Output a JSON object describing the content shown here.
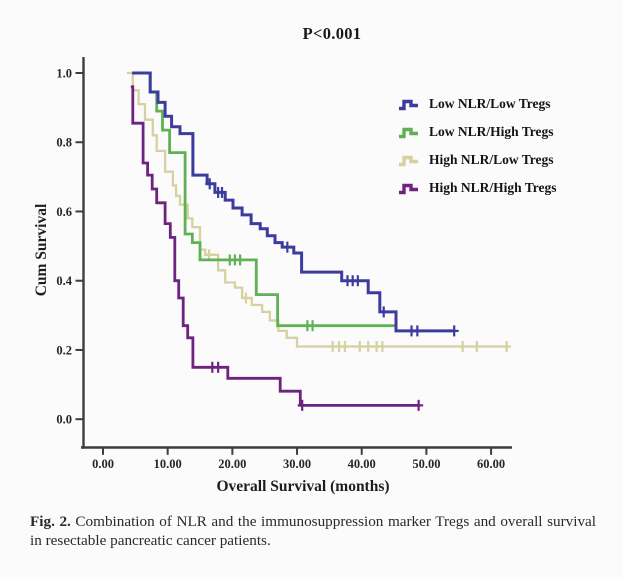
{
  "figure": {
    "title": "P<0.001",
    "caption_prefix": "Fig. 2.",
    "caption_text": "Combination of NLR and the immunosuppression marker Tregs and overall survival in resectable pancreatic cancer patients."
  },
  "chart_data": {
    "type": "line",
    "subtype": "kaplan-meier-step",
    "title": "P<0.001",
    "xlabel": "Overall Survival (months)",
    "ylabel": "Cum Survival",
    "xlim": [
      0,
      63
    ],
    "ylim": [
      0.0,
      1.0
    ],
    "xticks": [
      0,
      10,
      20,
      30,
      40,
      50,
      60
    ],
    "xtick_labels": [
      "0.00",
      "10.00",
      "20.00",
      "30.00",
      "40.00",
      "50.00",
      "60.00"
    ],
    "yticks": [
      0.0,
      0.2,
      0.4,
      0.6,
      0.8,
      1.0
    ],
    "ytick_labels": [
      "0.0",
      "0.2",
      "0.4",
      "0.6",
      "0.8",
      "1.0"
    ],
    "grid": false,
    "legend_position": "upper right",
    "axis_color": "#3d3d3d",
    "tick_label_color": "#262626",
    "series": [
      {
        "name": "Low NLR/Low Tregs",
        "color": "#3c3c9e",
        "line_width": 3,
        "steps": [
          [
            4.5,
            1.0
          ],
          [
            7.3,
            0.945
          ],
          [
            8.5,
            0.915
          ],
          [
            9.6,
            0.875
          ],
          [
            10.6,
            0.845
          ],
          [
            11.9,
            0.825
          ],
          [
            13.9,
            0.705
          ],
          [
            16.1,
            0.68
          ],
          [
            17.3,
            0.655
          ],
          [
            18.9,
            0.633
          ],
          [
            20.1,
            0.61
          ],
          [
            21.5,
            0.59
          ],
          [
            22.9,
            0.565
          ],
          [
            24.3,
            0.55
          ],
          [
            25.4,
            0.53
          ],
          [
            26.6,
            0.51
          ],
          [
            27.7,
            0.497
          ],
          [
            29.5,
            0.48
          ],
          [
            30.7,
            0.425
          ],
          [
            36.9,
            0.4
          ],
          [
            41.0,
            0.365
          ],
          [
            42.8,
            0.31
          ],
          [
            45.3,
            0.255
          ]
        ],
        "end_month": 54.4,
        "censored": [
          [
            16.5,
            0.68
          ],
          [
            17.8,
            0.655
          ],
          [
            18.4,
            0.655
          ],
          [
            28.5,
            0.497
          ],
          [
            37.8,
            0.4
          ],
          [
            38.6,
            0.4
          ],
          [
            39.4,
            0.4
          ],
          [
            43.4,
            0.31
          ],
          [
            47.7,
            0.255
          ],
          [
            48.6,
            0.255
          ],
          [
            54.3,
            0.255
          ]
        ]
      },
      {
        "name": "Low NLR/High Tregs",
        "color": "#5fb254",
        "line_width": 2.8,
        "steps": [
          [
            4.6,
            1.0
          ],
          [
            7.3,
            0.945
          ],
          [
            8.3,
            0.89
          ],
          [
            9.2,
            0.835
          ],
          [
            10.3,
            0.77
          ],
          [
            12.7,
            0.535
          ],
          [
            13.8,
            0.51
          ],
          [
            15.0,
            0.46
          ],
          [
            23.7,
            0.36
          ],
          [
            27.0,
            0.27
          ]
        ],
        "end_month": 45.5,
        "censored": [
          [
            19.6,
            0.46
          ],
          [
            20.4,
            0.46
          ],
          [
            21.2,
            0.46
          ],
          [
            31.6,
            0.27
          ],
          [
            32.4,
            0.27
          ]
        ]
      },
      {
        "name": "High NLR/Low Tregs",
        "color": "#d5d1a0",
        "line_width": 2.3,
        "steps": [
          [
            3.7,
            1.0
          ],
          [
            4.6,
            0.95
          ],
          [
            5.5,
            0.91
          ],
          [
            6.5,
            0.865
          ],
          [
            7.7,
            0.82
          ],
          [
            8.3,
            0.775
          ],
          [
            9.6,
            0.715
          ],
          [
            10.8,
            0.675
          ],
          [
            11.3,
            0.645
          ],
          [
            11.9,
            0.62
          ],
          [
            13.1,
            0.58
          ],
          [
            13.8,
            0.555
          ],
          [
            15.0,
            0.49
          ],
          [
            15.8,
            0.475
          ],
          [
            17.8,
            0.43
          ],
          [
            18.9,
            0.395
          ],
          [
            20.4,
            0.38
          ],
          [
            21.5,
            0.35
          ],
          [
            23.0,
            0.33
          ],
          [
            24.6,
            0.31
          ],
          [
            25.8,
            0.285
          ],
          [
            27.1,
            0.255
          ],
          [
            28.4,
            0.235
          ],
          [
            30.0,
            0.21
          ]
        ],
        "end_month": 62.5,
        "censored": [
          [
            16.4,
            0.475
          ],
          [
            22.1,
            0.35
          ],
          [
            35.5,
            0.21
          ],
          [
            36.5,
            0.21
          ],
          [
            37.4,
            0.21
          ],
          [
            39.7,
            0.21
          ],
          [
            41.0,
            0.21
          ],
          [
            42.3,
            0.21
          ],
          [
            43.2,
            0.21
          ],
          [
            55.6,
            0.21
          ],
          [
            57.8,
            0.21
          ],
          [
            62.4,
            0.21
          ]
        ]
      },
      {
        "name": "High NLR/High Tregs",
        "color": "#6f2380",
        "line_width": 2.8,
        "steps": [
          [
            4.3,
            0.96
          ],
          [
            4.6,
            0.855
          ],
          [
            6.2,
            0.74
          ],
          [
            6.9,
            0.705
          ],
          [
            7.6,
            0.665
          ],
          [
            8.3,
            0.625
          ],
          [
            9.6,
            0.565
          ],
          [
            10.4,
            0.525
          ],
          [
            11.1,
            0.4
          ],
          [
            11.7,
            0.35
          ],
          [
            12.4,
            0.27
          ],
          [
            13.1,
            0.235
          ],
          [
            13.9,
            0.15
          ],
          [
            19.3,
            0.118
          ],
          [
            27.4,
            0.081
          ],
          [
            30.5,
            0.04
          ]
        ],
        "end_month": 48.8,
        "censored": [
          [
            16.9,
            0.15
          ],
          [
            17.8,
            0.15
          ],
          [
            30.8,
            0.04
          ],
          [
            48.8,
            0.04
          ]
        ]
      }
    ]
  }
}
